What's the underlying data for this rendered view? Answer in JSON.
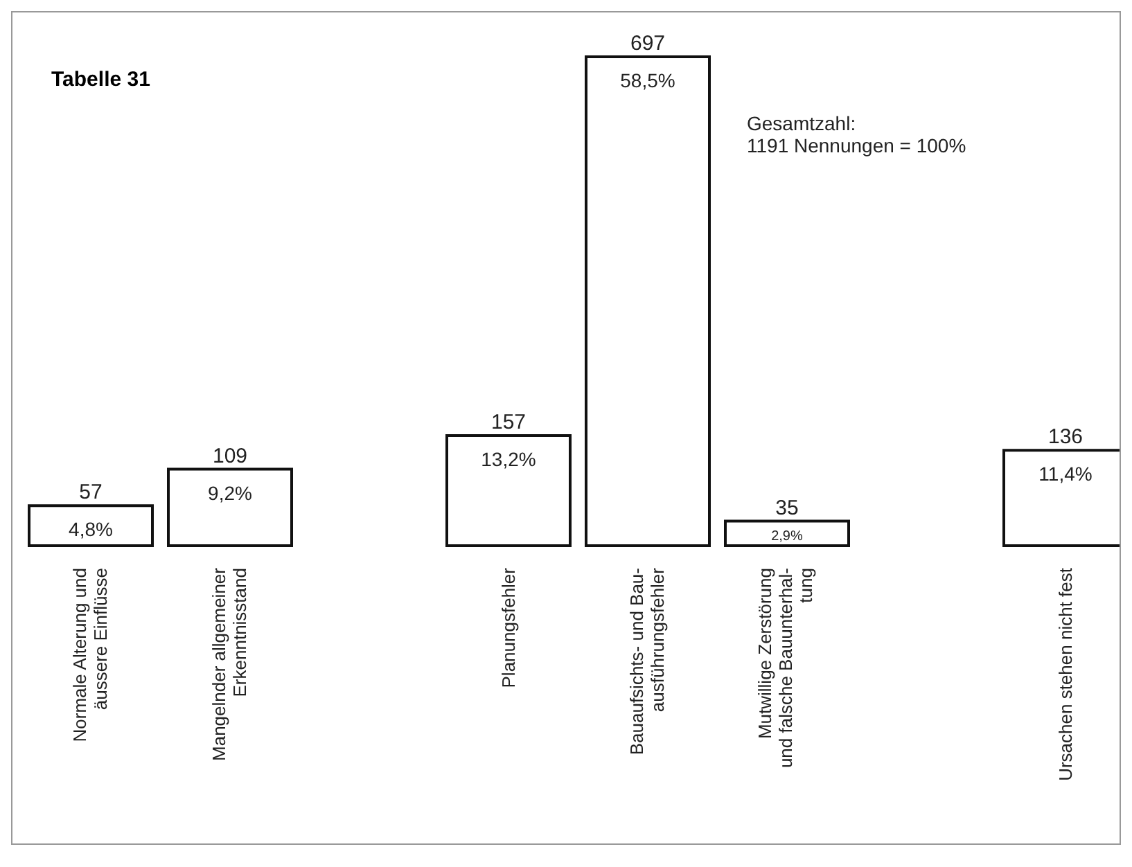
{
  "chart_data": {
    "type": "bar",
    "title": "Tabelle 31",
    "categories": [
      "Normale Alterung und\näussere Einflüsse",
      "Mangelnder allgemeiner\nErkenntnisstand",
      null,
      "Planungsfehler",
      "Bauaufsichts- und Bau-\nausführungsfehler",
      "Mutwillige Zerstörung\nund falsche Bauunterhal-\ntung",
      null,
      "Ursachen stehen nicht fest"
    ],
    "values": [
      57,
      109,
      null,
      157,
      697,
      35,
      null,
      136
    ],
    "color": "#ffffff",
    "data_labels": true,
    "annotations": [
      "4,8%",
      "9,2%",
      "13,2%",
      "58,5%",
      "2,9%",
      "11,4%",
      "Gesamtzahl:\n1191 Nennungen = 100%"
    ]
  }
}
